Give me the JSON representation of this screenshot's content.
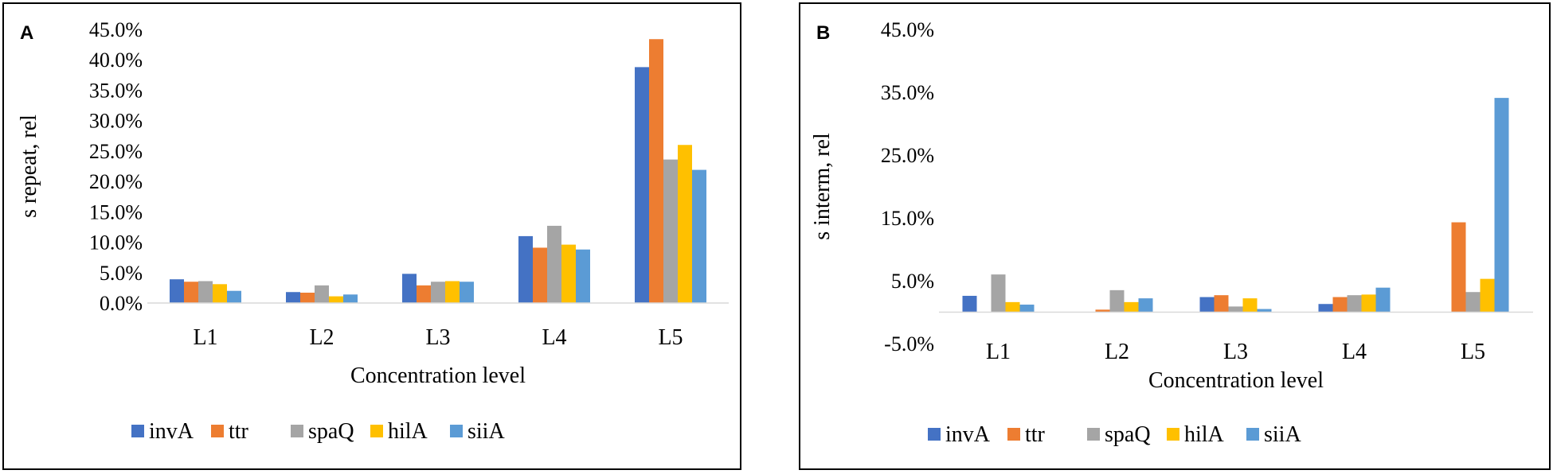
{
  "chart_data": [
    {
      "panel_letter": "A",
      "type": "bar",
      "categories": [
        "L1",
        "L2",
        "L3",
        "L4",
        "L5"
      ],
      "series": [
        {
          "name": "invA",
          "color": "#4472C4",
          "values": [
            3.9,
            1.8,
            4.8,
            11.0,
            38.8
          ]
        },
        {
          "name": "ttr",
          "color": "#ED7D31",
          "values": [
            3.5,
            1.7,
            2.9,
            9.1,
            43.4
          ]
        },
        {
          "name": "spaQ",
          "color": "#A5A5A5",
          "values": [
            3.6,
            2.9,
            3.5,
            12.7,
            23.6
          ]
        },
        {
          "name": "hilA",
          "color": "#FFC000",
          "values": [
            3.1,
            1.1,
            3.6,
            9.6,
            26.0
          ]
        },
        {
          "name": "siiA",
          "color": "#5B9BD5",
          "values": [
            2.0,
            1.4,
            3.5,
            8.8,
            21.9
          ]
        }
      ],
      "ylabel": "s repeat, rel",
      "xlabel": "Concentration level",
      "ylim": [
        0,
        45
      ],
      "yticks": [
        0,
        5,
        10,
        15,
        20,
        25,
        30,
        35,
        40,
        45
      ],
      "ytick_labels": [
        "0.0%",
        "5.0%",
        "10.0%",
        "15.0%",
        "20.0%",
        "25.0%",
        "30.0%",
        "35.0%",
        "40.0%",
        "45.0%"
      ],
      "legend_position": "bottom",
      "grid": false
    },
    {
      "panel_letter": "B",
      "type": "bar",
      "categories": [
        "L1",
        "L2",
        "L3",
        "L4",
        "L5"
      ],
      "series": [
        {
          "name": "invA",
          "color": "#4472C4",
          "values": [
            2.6,
            0.0,
            2.4,
            1.3,
            0.0
          ]
        },
        {
          "name": "ttr",
          "color": "#ED7D31",
          "values": [
            0.0,
            0.4,
            2.7,
            2.4,
            14.3
          ]
        },
        {
          "name": "spaQ",
          "color": "#A5A5A5",
          "values": [
            6.0,
            3.5,
            0.9,
            2.7,
            3.2
          ]
        },
        {
          "name": "hilA",
          "color": "#FFC000",
          "values": [
            1.6,
            1.6,
            2.2,
            2.8,
            5.3
          ]
        },
        {
          "name": "siiA",
          "color": "#5B9BD5",
          "values": [
            1.2,
            2.2,
            0.5,
            3.9,
            34.1
          ]
        }
      ],
      "ylabel": "s interm, rel",
      "xlabel": "Concentration level",
      "ylim": [
        -5,
        45
      ],
      "yticks": [
        -5,
        5,
        15,
        25,
        35,
        45
      ],
      "ytick_labels": [
        "-5.0%",
        "5.0%",
        "15.0%",
        "25.0%",
        "35.0%",
        "45.0%"
      ],
      "legend_position": "bottom",
      "grid": false
    }
  ]
}
